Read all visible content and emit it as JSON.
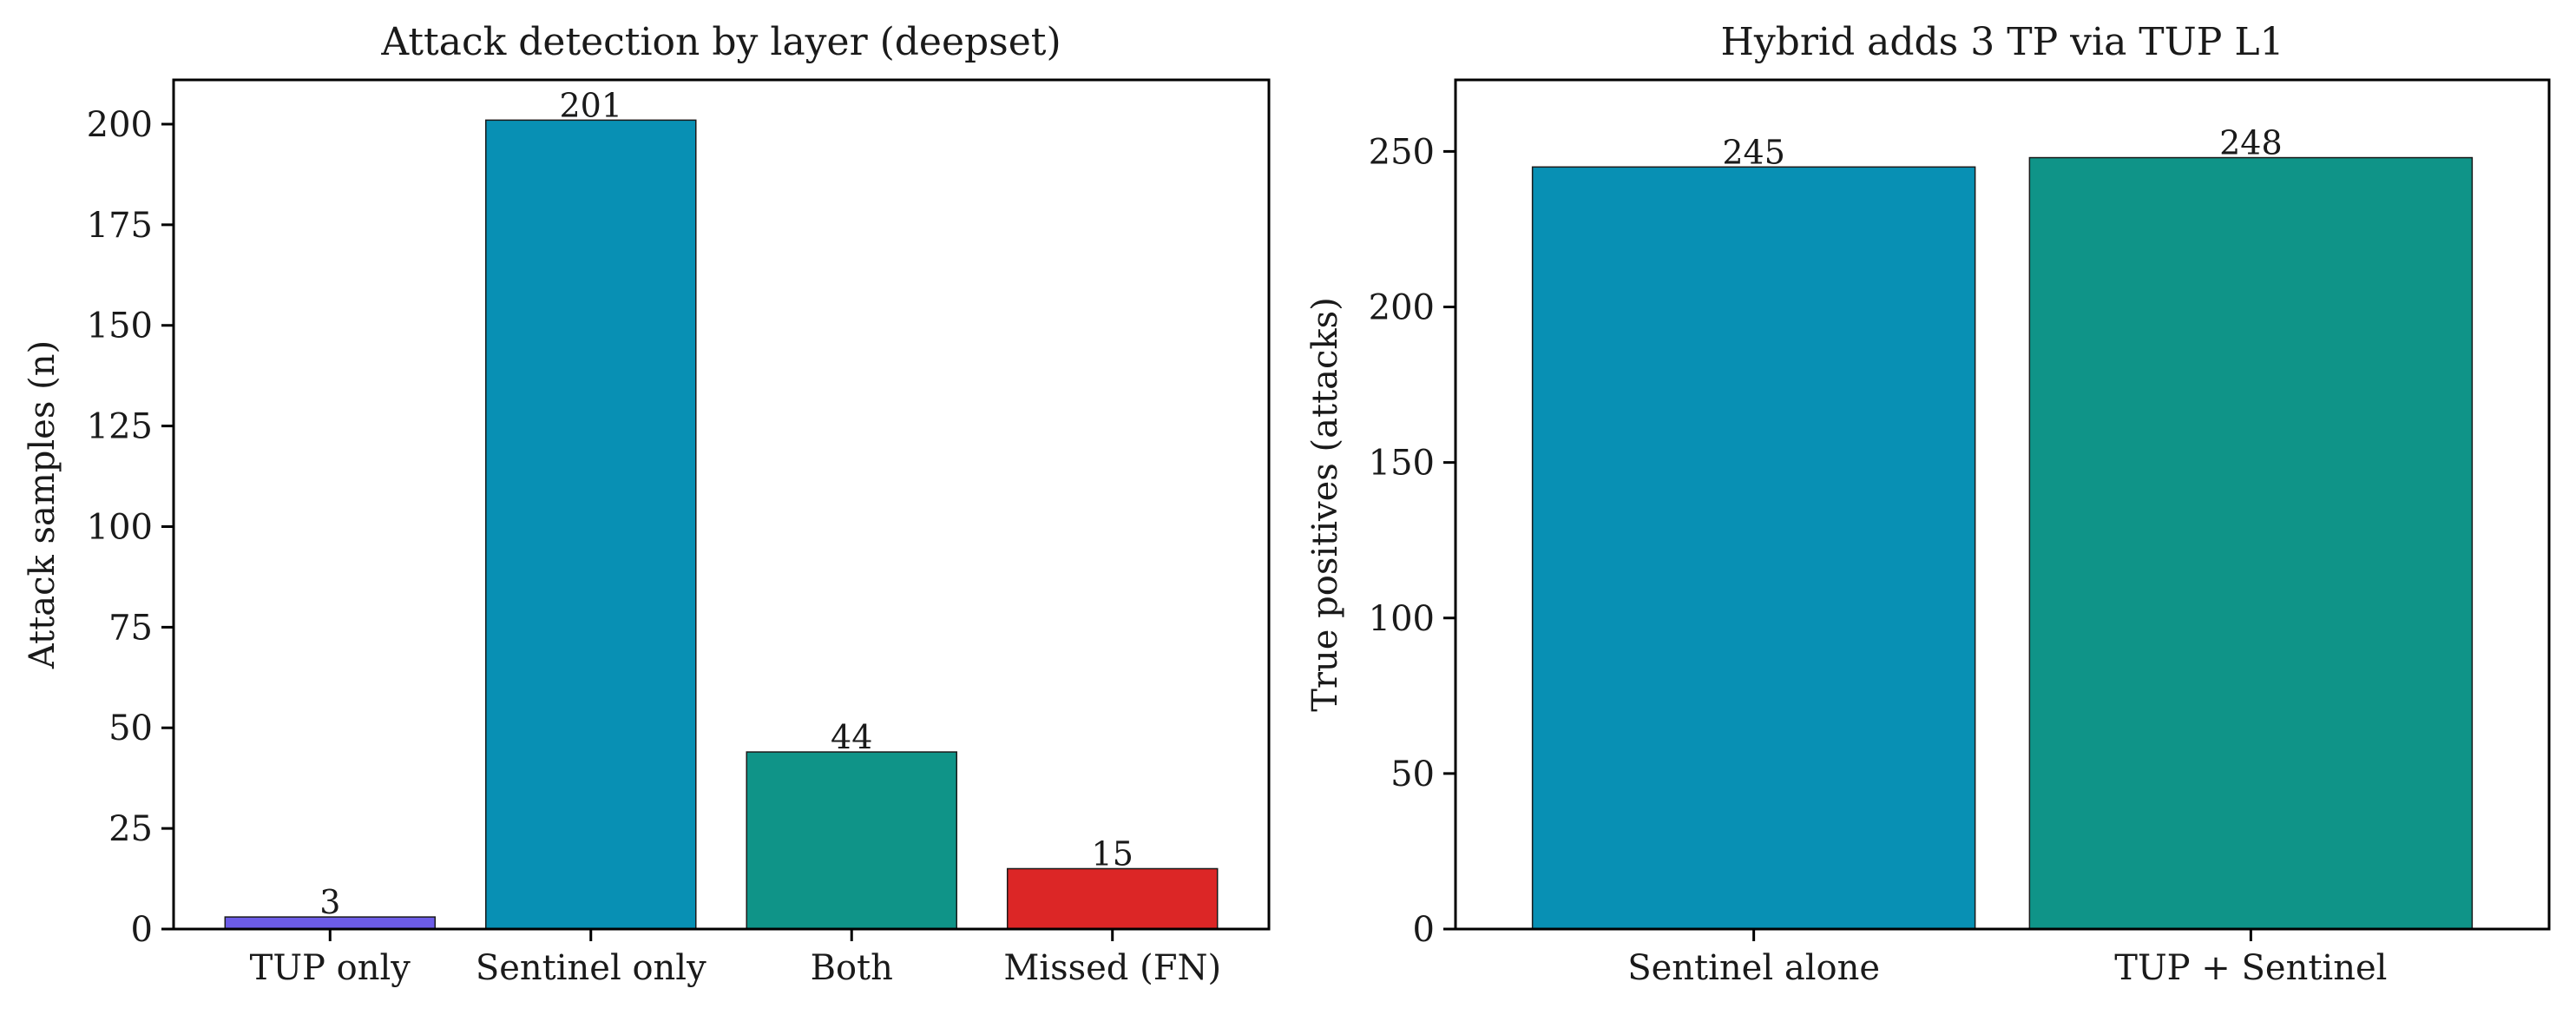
{
  "chart_data": [
    {
      "type": "bar",
      "title": "Attack detection by layer (deepset)",
      "xlabel": "",
      "ylabel": "Attack samples (n)",
      "categories": [
        "TUP only",
        "Sentinel only",
        "Both",
        "Missed (FN)"
      ],
      "values": [
        3,
        201,
        44,
        15
      ],
      "data_labels": [
        "3",
        "201",
        "44",
        "15"
      ],
      "colors": [
        "#6c5ce7",
        "#0890b4",
        "#0f9488",
        "#dc2626"
      ],
      "ylim": [
        0,
        211
      ],
      "yticks": [
        0,
        25,
        50,
        75,
        100,
        125,
        150,
        175,
        200
      ],
      "grid": false,
      "legend": "none"
    },
    {
      "type": "bar",
      "title": "Hybrid adds 3 TP via TUP L1",
      "xlabel": "",
      "ylabel": "True positives (attacks)",
      "categories": [
        "Sentinel alone",
        "TUP + Sentinel"
      ],
      "values": [
        245,
        248
      ],
      "data_labels": [
        "245",
        "248"
      ],
      "colors": [
        "#0890b4",
        "#0f9488"
      ],
      "ylim": [
        0,
        273
      ],
      "yticks": [
        0,
        50,
        100,
        150,
        200,
        250
      ],
      "grid": false,
      "legend": "none"
    }
  ]
}
